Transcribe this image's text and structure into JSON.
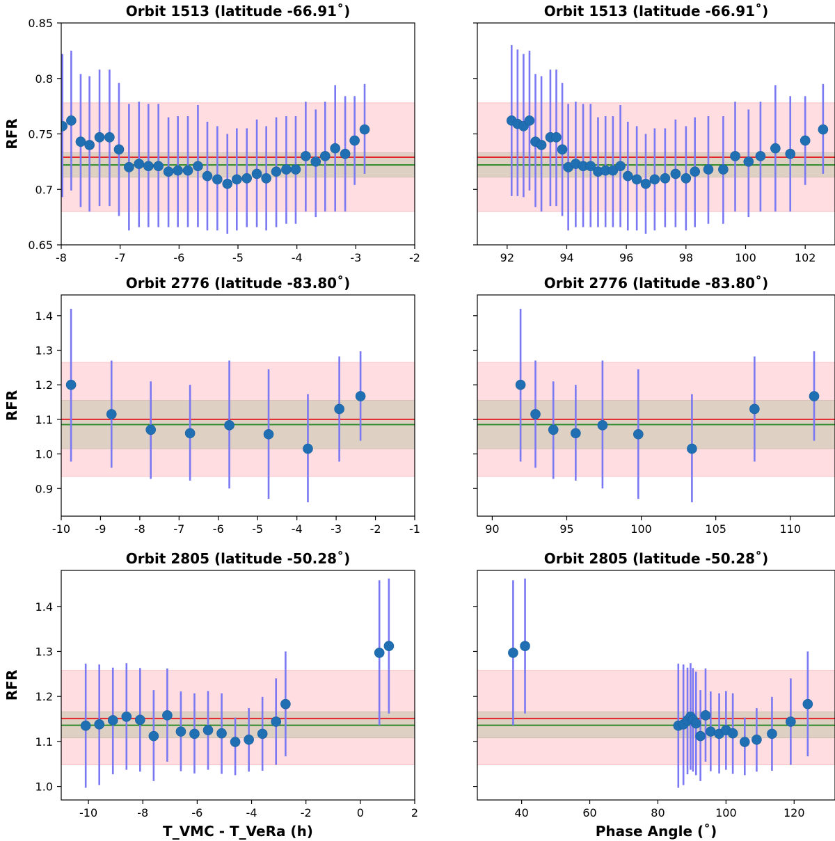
{
  "chart_data": [
    {
      "type": "scatter",
      "title": "Orbit 1513 (latitude -66.91˚)",
      "ylabel": "RFR",
      "xlabel": "",
      "xlim": [
        -8,
        -2
      ],
      "ylim": [
        0.65,
        0.85
      ],
      "xticks": [
        -8,
        -7,
        -6,
        -5,
        -4,
        -3,
        -2
      ],
      "xtick_labels": [
        "-8",
        "-7",
        "-6",
        "-5",
        "-4",
        "-3",
        "-2"
      ],
      "yticks": [
        0.65,
        0.7,
        0.75,
        0.8,
        0.85
      ],
      "ytick_labels": [
        "0.65",
        "0.7",
        "0.75",
        "0.8",
        "0.85"
      ],
      "show_ytick_labels": true,
      "bands": [
        {
          "name": "outer",
          "low": 0.68,
          "high": 0.778,
          "color": "#ffdde0"
        },
        {
          "name": "inner",
          "low": 0.711,
          "high": 0.733,
          "color": "#dfd0c4"
        }
      ],
      "hlines": [
        {
          "name": "red-mean",
          "y": 0.729,
          "color": "#e3262a"
        },
        {
          "name": "green-mean",
          "y": 0.722,
          "color": "#2a8a2a"
        }
      ],
      "points": {
        "x": [
          -7.98,
          -7.83,
          -7.67,
          -7.52,
          -7.35,
          -7.18,
          -7.02,
          -6.85,
          -6.68,
          -6.52,
          -6.35,
          -6.18,
          -6.02,
          -5.85,
          -5.68,
          -5.52,
          -5.35,
          -5.18,
          -5.02,
          -4.85,
          -4.68,
          -4.52,
          -4.35,
          -4.18,
          -4.02,
          -3.85,
          -3.68,
          -3.52,
          -3.35,
          -3.18,
          -3.02,
          -2.85
        ],
        "y": [
          0.757,
          0.762,
          0.743,
          0.74,
          0.747,
          0.747,
          0.736,
          0.72,
          0.723,
          0.721,
          0.721,
          0.716,
          0.717,
          0.717,
          0.721,
          0.712,
          0.709,
          0.705,
          0.709,
          0.71,
          0.714,
          0.71,
          0.716,
          0.718,
          0.718,
          0.73,
          0.725,
          0.73,
          0.737,
          0.732,
          0.744,
          0.754
        ],
        "err_low": [
          0.693,
          0.699,
          0.684,
          0.68,
          0.685,
          0.685,
          0.676,
          0.663,
          0.666,
          0.666,
          0.666,
          0.666,
          0.666,
          0.666,
          0.666,
          0.663,
          0.663,
          0.66,
          0.663,
          0.666,
          0.666,
          0.663,
          0.666,
          0.669,
          0.669,
          0.68,
          0.675,
          0.68,
          0.68,
          0.68,
          0.704,
          0.714
        ],
        "err_high": [
          0.822,
          0.825,
          0.804,
          0.802,
          0.808,
          0.808,
          0.796,
          0.777,
          0.779,
          0.777,
          0.777,
          0.765,
          0.766,
          0.766,
          0.776,
          0.761,
          0.757,
          0.75,
          0.755,
          0.755,
          0.763,
          0.757,
          0.765,
          0.766,
          0.766,
          0.779,
          0.772,
          0.779,
          0.794,
          0.784,
          0.784,
          0.795
        ]
      }
    },
    {
      "type": "scatter",
      "title": "Orbit 1513 (latitude -66.91˚)",
      "ylabel": "",
      "xlabel": "",
      "xlim": [
        91,
        103
      ],
      "ylim": [
        0.65,
        0.85
      ],
      "xticks": [
        92,
        94,
        96,
        98,
        100,
        102
      ],
      "xtick_labels": [
        "92",
        "94",
        "96",
        "98",
        "100",
        "102"
      ],
      "yticks": [
        0.65,
        0.7,
        0.75,
        0.8,
        0.85
      ],
      "ytick_labels": [
        "0.65",
        "0.7",
        "0.75",
        "0.8",
        "0.85"
      ],
      "show_ytick_labels": false,
      "bands": [
        {
          "name": "outer",
          "low": 0.68,
          "high": 0.778,
          "color": "#ffdde0"
        },
        {
          "name": "inner",
          "low": 0.711,
          "high": 0.733,
          "color": "#dfd0c4"
        }
      ],
      "hlines": [
        {
          "name": "red-mean",
          "y": 0.729,
          "color": "#e3262a"
        },
        {
          "name": "green-mean",
          "y": 0.722,
          "color": "#2a8a2a"
        }
      ],
      "points": {
        "x": [
          92.15,
          92.35,
          92.55,
          92.75,
          92.95,
          93.15,
          93.45,
          93.65,
          93.85,
          94.05,
          94.3,
          94.55,
          94.8,
          95.05,
          95.3,
          95.55,
          95.8,
          96.05,
          96.35,
          96.65,
          96.95,
          97.3,
          97.65,
          98.0,
          98.3,
          98.75,
          99.25,
          99.65,
          100.1,
          100.5,
          101.0,
          101.5,
          102.0,
          102.6
        ],
        "y": [
          0.762,
          0.759,
          0.757,
          0.762,
          0.743,
          0.74,
          0.747,
          0.747,
          0.736,
          0.72,
          0.723,
          0.721,
          0.721,
          0.716,
          0.717,
          0.717,
          0.721,
          0.712,
          0.709,
          0.705,
          0.709,
          0.71,
          0.714,
          0.71,
          0.716,
          0.718,
          0.718,
          0.73,
          0.725,
          0.73,
          0.737,
          0.732,
          0.744,
          0.754
        ],
        "err_low": [
          0.694,
          0.694,
          0.693,
          0.699,
          0.684,
          0.68,
          0.685,
          0.685,
          0.676,
          0.663,
          0.666,
          0.666,
          0.666,
          0.666,
          0.666,
          0.666,
          0.666,
          0.663,
          0.663,
          0.66,
          0.663,
          0.666,
          0.666,
          0.663,
          0.666,
          0.669,
          0.669,
          0.68,
          0.675,
          0.68,
          0.68,
          0.68,
          0.704,
          0.714
        ],
        "err_high": [
          0.83,
          0.826,
          0.822,
          0.825,
          0.804,
          0.802,
          0.808,
          0.808,
          0.796,
          0.777,
          0.779,
          0.777,
          0.777,
          0.765,
          0.766,
          0.766,
          0.776,
          0.761,
          0.757,
          0.75,
          0.755,
          0.755,
          0.763,
          0.757,
          0.765,
          0.766,
          0.766,
          0.779,
          0.772,
          0.779,
          0.794,
          0.784,
          0.784,
          0.795
        ]
      }
    },
    {
      "type": "scatter",
      "title": "Orbit 2776 (latitude -83.80˚)",
      "ylabel": "RFR",
      "xlabel": "",
      "xlim": [
        -10,
        -1
      ],
      "ylim": [
        0.82,
        1.46
      ],
      "xticks": [
        -10,
        -9,
        -8,
        -7,
        -6,
        -5,
        -4,
        -3,
        -2,
        -1
      ],
      "xtick_labels": [
        "-10",
        "-9",
        "-8",
        "-7",
        "-6",
        "-5",
        "-4",
        "-3",
        "-2",
        "-1"
      ],
      "yticks": [
        0.9,
        1.0,
        1.1,
        1.2,
        1.3,
        1.4
      ],
      "ytick_labels": [
        "0.9",
        "1.0",
        "1.1",
        "1.2",
        "1.3",
        "1.4"
      ],
      "show_ytick_labels": true,
      "bands": [
        {
          "name": "outer",
          "low": 0.935,
          "high": 1.265,
          "color": "#ffdde0"
        },
        {
          "name": "inner",
          "low": 1.015,
          "high": 1.155,
          "color": "#dfd0c4"
        }
      ],
      "hlines": [
        {
          "name": "red-mean",
          "y": 1.1,
          "color": "#e3262a"
        },
        {
          "name": "green-mean",
          "y": 1.085,
          "color": "#2a8a2a"
        }
      ],
      "points": {
        "x": [
          -9.75,
          -8.72,
          -7.72,
          -6.72,
          -5.72,
          -4.72,
          -3.72,
          -2.92,
          -2.38
        ],
        "y": [
          1.2,
          1.115,
          1.07,
          1.06,
          1.083,
          1.057,
          1.015,
          1.13,
          1.167
        ],
        "err_low": [
          0.978,
          0.96,
          0.928,
          0.923,
          0.9,
          0.87,
          0.86,
          0.978,
          1.038
        ],
        "err_high": [
          1.42,
          1.27,
          1.21,
          1.2,
          1.27,
          1.245,
          1.173,
          1.282,
          1.297
        ]
      }
    },
    {
      "type": "scatter",
      "title": "Orbit 2776 (latitude -83.80˚)",
      "ylabel": "",
      "xlabel": "",
      "xlim": [
        89,
        113
      ],
      "ylim": [
        0.82,
        1.46
      ],
      "xticks": [
        90,
        95,
        100,
        105,
        110
      ],
      "xtick_labels": [
        "90",
        "95",
        "100",
        "105",
        "110"
      ],
      "yticks": [
        0.9,
        1.0,
        1.1,
        1.2,
        1.3,
        1.4
      ],
      "ytick_labels": [
        "0.9",
        "1.0",
        "1.1",
        "1.2",
        "1.3",
        "1.4"
      ],
      "show_ytick_labels": false,
      "bands": [
        {
          "name": "outer",
          "low": 0.935,
          "high": 1.265,
          "color": "#ffdde0"
        },
        {
          "name": "inner",
          "low": 1.015,
          "high": 1.155,
          "color": "#dfd0c4"
        }
      ],
      "hlines": [
        {
          "name": "red-mean",
          "y": 1.1,
          "color": "#e3262a"
        },
        {
          "name": "green-mean",
          "y": 1.085,
          "color": "#2a8a2a"
        }
      ],
      "points": {
        "x": [
          91.9,
          92.9,
          94.1,
          95.6,
          97.4,
          99.8,
          103.4,
          107.6,
          111.6
        ],
        "y": [
          1.2,
          1.115,
          1.07,
          1.06,
          1.083,
          1.057,
          1.015,
          1.13,
          1.167
        ],
        "err_low": [
          0.978,
          0.96,
          0.928,
          0.923,
          0.9,
          0.87,
          0.86,
          0.978,
          1.038
        ],
        "err_high": [
          1.42,
          1.27,
          1.21,
          1.2,
          1.27,
          1.245,
          1.173,
          1.282,
          1.297
        ]
      }
    },
    {
      "type": "scatter",
      "title": "Orbit 2805 (latitude -50.28˚)",
      "ylabel": "RFR",
      "xlabel": "T_VMC - T_VeRa (h)",
      "xlim": [
        -11,
        2
      ],
      "ylim": [
        0.97,
        1.48
      ],
      "xticks": [
        -10,
        -8,
        -6,
        -4,
        -2,
        0,
        2
      ],
      "xtick_labels": [
        "-10",
        "-8",
        "-6",
        "-4",
        "-2",
        "0",
        "2"
      ],
      "yticks": [
        1.0,
        1.1,
        1.2,
        1.3,
        1.4
      ],
      "ytick_labels": [
        "1.0",
        "1.1",
        "1.2",
        "1.3",
        "1.4"
      ],
      "show_ytick_labels": true,
      "bands": [
        {
          "name": "outer",
          "low": 1.048,
          "high": 1.258,
          "color": "#ffdde0"
        },
        {
          "name": "inner",
          "low": 1.108,
          "high": 1.166,
          "color": "#dfd0c4"
        }
      ],
      "hlines": [
        {
          "name": "red-mean",
          "y": 1.151,
          "color": "#e3262a"
        },
        {
          "name": "green-mean",
          "y": 1.136,
          "color": "#2a8a2a"
        }
      ],
      "points": {
        "x": [
          -10.1,
          -9.6,
          -9.1,
          -8.6,
          -8.1,
          -7.6,
          -7.1,
          -6.6,
          -6.1,
          -5.6,
          -5.1,
          -4.6,
          -4.1,
          -3.6,
          -3.1,
          -2.75,
          0.7,
          1.05
        ],
        "y": [
          1.135,
          1.138,
          1.147,
          1.155,
          1.148,
          1.112,
          1.158,
          1.122,
          1.117,
          1.125,
          1.118,
          1.099,
          1.104,
          1.117,
          1.144,
          1.183,
          1.297,
          1.312
        ],
        "err_low": [
          0.997,
          1.003,
          1.027,
          1.037,
          1.033,
          1.012,
          1.055,
          1.034,
          1.029,
          1.037,
          1.028,
          1.025,
          1.033,
          1.035,
          1.048,
          1.067,
          1.136,
          1.162
        ],
        "err_high": [
          1.273,
          1.271,
          1.264,
          1.274,
          1.263,
          1.214,
          1.262,
          1.211,
          1.207,
          1.212,
          1.207,
          1.153,
          1.174,
          1.199,
          1.24,
          1.3,
          1.458,
          1.462
        ]
      }
    },
    {
      "type": "scatter",
      "title": "Orbit 2805 (latitude -50.28˚)",
      "ylabel": "",
      "xlabel": "Phase Angle (˚)",
      "xlim": [
        27,
        132
      ],
      "ylim": [
        0.97,
        1.48
      ],
      "xticks": [
        40,
        60,
        80,
        100,
        120
      ],
      "xtick_labels": [
        "40",
        "60",
        "80",
        "100",
        "120"
      ],
      "yticks": [
        1.0,
        1.1,
        1.2,
        1.3,
        1.4
      ],
      "ytick_labels": [
        "1.0",
        "1.1",
        "1.2",
        "1.3",
        "1.4"
      ],
      "show_ytick_labels": false,
      "bands": [
        {
          "name": "outer",
          "low": 1.048,
          "high": 1.258,
          "color": "#ffdde0"
        },
        {
          "name": "inner",
          "low": 1.108,
          "high": 1.166,
          "color": "#dfd0c4"
        }
      ],
      "hlines": [
        {
          "name": "red-mean",
          "y": 1.151,
          "color": "#e3262a"
        },
        {
          "name": "green-mean",
          "y": 1.136,
          "color": "#2a8a2a"
        }
      ],
      "points": {
        "x": [
          37.5,
          41.0,
          86.0,
          87.5,
          88.7,
          89.6,
          90.3,
          91.2,
          92.5,
          94.0,
          95.5,
          98.0,
          100.0,
          102.0,
          105.5,
          109.0,
          113.5,
          119.0,
          124.0
        ],
        "y": [
          1.297,
          1.312,
          1.135,
          1.138,
          1.147,
          1.155,
          1.148,
          1.14,
          1.112,
          1.158,
          1.122,
          1.117,
          1.125,
          1.118,
          1.099,
          1.104,
          1.117,
          1.144,
          1.183
        ],
        "err_low": [
          1.136,
          1.162,
          0.997,
          1.003,
          1.027,
          1.037,
          1.033,
          1.025,
          1.012,
          1.055,
          1.034,
          1.029,
          1.037,
          1.028,
          1.025,
          1.033,
          1.035,
          1.048,
          1.067
        ],
        "err_high": [
          1.458,
          1.462,
          1.273,
          1.271,
          1.264,
          1.274,
          1.263,
          1.255,
          1.214,
          1.262,
          1.211,
          1.207,
          1.212,
          1.207,
          1.153,
          1.174,
          1.199,
          1.24,
          1.3
        ]
      }
    }
  ]
}
